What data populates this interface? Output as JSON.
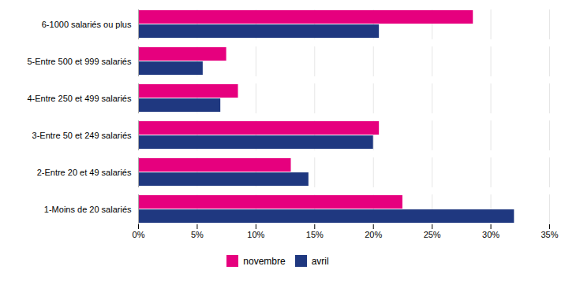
{
  "chart_data": {
    "type": "bar",
    "orientation": "horizontal",
    "categories": [
      "1-Moins de 20 salariés",
      "2-Entre 20 et 49 salariés",
      "3-Entre 50 et 249 salariés",
      "4-Entre 250 et 499 salariés",
      "5-Entre 500 et 999 salariés",
      "6-1000 salariés ou plus"
    ],
    "series": [
      {
        "name": "novembre",
        "color": "#E6007E",
        "values": [
          22.5,
          13.0,
          20.5,
          8.5,
          7.5,
          28.5
        ]
      },
      {
        "name": "avril",
        "color": "#1F3880",
        "values": [
          32.0,
          14.5,
          20.0,
          7.0,
          5.5,
          20.5
        ]
      }
    ],
    "xlim": [
      0,
      35
    ],
    "xticks": [
      {
        "value": 0,
        "label": "0%"
      },
      {
        "value": 5,
        "label": "5%"
      },
      {
        "value": 10,
        "label": "10%"
      },
      {
        "value": 15,
        "label": "15%"
      },
      {
        "value": 20,
        "label": "20%"
      },
      {
        "value": 25,
        "label": "25%"
      },
      {
        "value": 30,
        "label": "30%"
      },
      {
        "value": 35,
        "label": "35%"
      }
    ],
    "grid": true,
    "legend": "bottom"
  }
}
